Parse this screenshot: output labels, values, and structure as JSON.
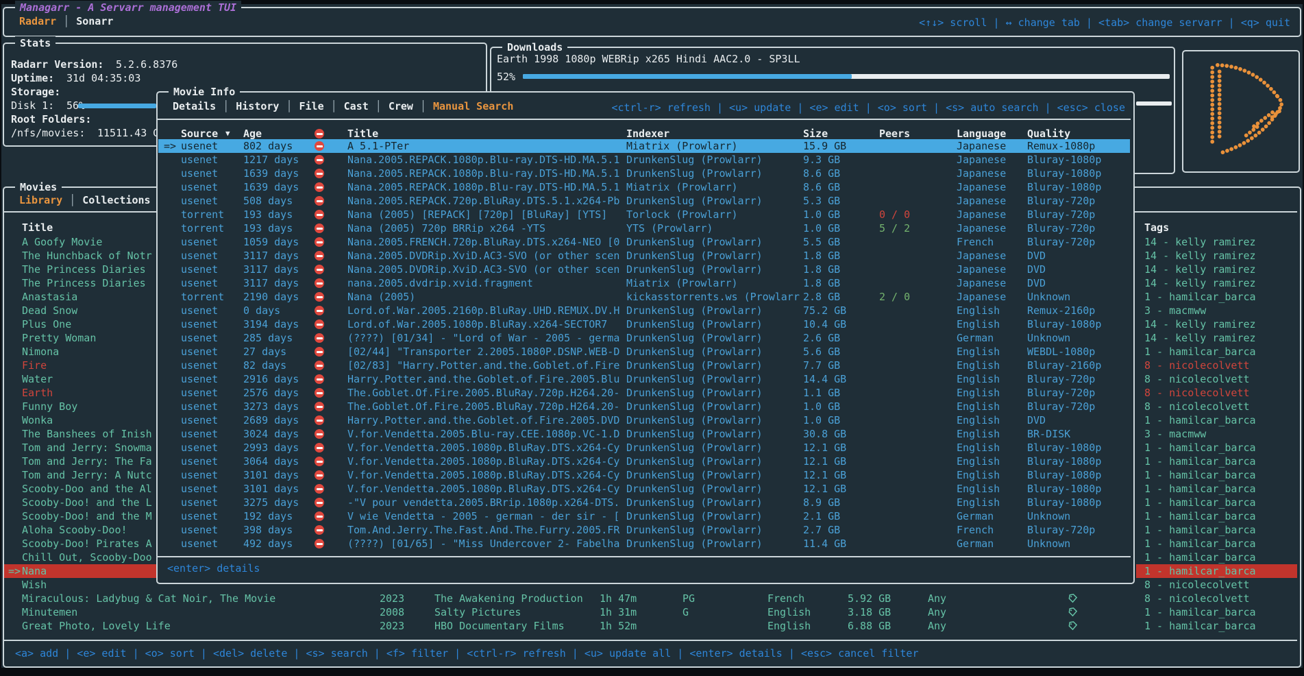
{
  "app": {
    "title": "Managarr - A Servarr management TUI",
    "tabs": [
      {
        "label": "Radarr",
        "active": true
      },
      {
        "label": "Sonarr",
        "active": false
      }
    ],
    "help": "<↑↓> scroll | ↔ change tab | <tab> change servarr | <q> quit"
  },
  "colors": {
    "background": "#1f2e37",
    "border": "#ccd6da",
    "accent_orange": "#e9953f",
    "purple": "#ab6fd6",
    "content_blue": "#4aa0d6",
    "help_blue": "#2e86d9",
    "teal": "#65c2a6",
    "red": "#d0453c",
    "selected_row_bg": "#47a9e2",
    "selected_red_bg": "#c2342c",
    "peers_green": "#74b36e",
    "bar_blue": "#47a9e2"
  },
  "stats": {
    "title": "Stats",
    "lines": [
      {
        "label": "Radarr Version:",
        "value": "5.2.6.8376",
        "bold": true,
        "bar": false
      },
      {
        "label": "Uptime:",
        "value": "31d 04:35:03",
        "bold": true,
        "bar": false
      },
      {
        "label": "Storage:",
        "value": "",
        "bold": true,
        "bar": false
      },
      {
        "label": "Disk 1:",
        "value": "56%",
        "bold": false,
        "bar": true
      },
      {
        "label": "Root Folders:",
        "value": "",
        "bold": true,
        "bar": false
      },
      {
        "label": "/nfs/movies:",
        "value": "11511.43 GB",
        "bold": false,
        "bar": false
      }
    ]
  },
  "downloads": {
    "title": "Downloads",
    "item": "Earth 1998 1080p WEBRip x265 Hindi AAC2.0 - SP3LL",
    "percent": "52%",
    "progress": 0.52
  },
  "movies": {
    "title": "Movies",
    "tabs": [
      {
        "label": "Library",
        "active": true
      },
      {
        "label": "Collections",
        "active": false
      }
    ],
    "columns": {
      "title": "Title",
      "tags": "Tags"
    },
    "footer": "<a> add | <e> edit | <o> sort | <del> delete | <s> search | <f> filter | <ctrl-r> refresh | <u> update all | <enter> details | <esc> cancel filter",
    "rows": [
      {
        "title": "A Goofy Movie",
        "tag": "14 - kelly ramirez"
      },
      {
        "title": "The Hunchback of Notr",
        "tag": "14 - kelly ramirez"
      },
      {
        "title": "The Princess Diaries",
        "tag": "14 - kelly ramirez"
      },
      {
        "title": "The Princess Diaries",
        "tag": "14 - kelly ramirez"
      },
      {
        "title": "Anastasia",
        "tag": "1 - hamilcar_barca"
      },
      {
        "title": "Dead Snow",
        "tag": "3 - macmww"
      },
      {
        "title": "Plus One",
        "tag": "14 - kelly ramirez"
      },
      {
        "title": "Pretty Woman",
        "tag": "14 - kelly ramirez"
      },
      {
        "title": "Nimona",
        "tag": "1 - hamilcar_barca"
      },
      {
        "title": "Fire",
        "red": true,
        "tag": "8 - nicolecolvett",
        "tag_red": true
      },
      {
        "title": "Water",
        "tag": "8 - nicolecolvett"
      },
      {
        "title": "Earth",
        "red": true,
        "tag": "8 - nicolecolvett",
        "tag_red": true
      },
      {
        "title": "Funny Boy",
        "tag": "8 - nicolecolvett"
      },
      {
        "title": "Wonka",
        "tag": "1 - hamilcar_barca"
      },
      {
        "title": "The Banshees of Inish",
        "tag": "3 - macmww"
      },
      {
        "title": "Tom and Jerry: Snowma",
        "tag": "1 - hamilcar_barca"
      },
      {
        "title": "Tom and Jerry: The Fa",
        "tag": "1 - hamilcar_barca"
      },
      {
        "title": "Tom and Jerry: A Nutc",
        "tag": "1 - hamilcar_barca"
      },
      {
        "title": "Scooby-Doo and the Al",
        "tag": "1 - hamilcar_barca"
      },
      {
        "title": "Scooby-Doo! and the L",
        "tag": "1 - hamilcar_barca"
      },
      {
        "title": "Scooby-Doo! and the M",
        "tag": "1 - hamilcar_barca"
      },
      {
        "title": "Aloha Scooby-Doo!",
        "tag": "1 - hamilcar_barca"
      },
      {
        "title": "Scooby-Doo! Pirates A",
        "tag": "1 - hamilcar_barca"
      },
      {
        "title": "Chill Out, Scooby-Doo",
        "tag": "1 - hamilcar_barca"
      },
      {
        "title": "Nana",
        "selected": true,
        "marker": "=>",
        "tag": "1 - hamilcar_barca",
        "tag_selected": true
      },
      {
        "title": "Wish",
        "tag": "8 - nicolecolvett"
      },
      {
        "title": "Miraculous: Ladybug & Cat Noir, The Movie",
        "tag": "8 - nicolecolvett",
        "cells": {
          "year": "2023",
          "studio": "The Awakening Production",
          "runtime": "1h 47m",
          "cert": "PG",
          "language": "French",
          "size": "5.92 GB",
          "availability": "Any"
        }
      },
      {
        "title": "Minutemen",
        "tag": "1 - hamilcar_barca",
        "cells": {
          "year": "2008",
          "studio": "Salty Pictures",
          "runtime": "1h 31m",
          "cert": "G",
          "language": "English",
          "size": "3.18 GB",
          "availability": "Any"
        }
      },
      {
        "title": "Great Photo, Lovely Life",
        "tag": "1 - hamilcar_barca",
        "cells": {
          "year": "2023",
          "studio": "HBO Documentary Films",
          "runtime": "1h 52m",
          "cert": "",
          "language": "English",
          "size": "6.88 GB",
          "availability": "Any"
        }
      }
    ]
  },
  "modal": {
    "title": "Movie Info",
    "tabs": [
      {
        "label": "Details",
        "active": false
      },
      {
        "label": "History",
        "active": false
      },
      {
        "label": "File",
        "active": false
      },
      {
        "label": "Cast",
        "active": false
      },
      {
        "label": "Crew",
        "active": false
      },
      {
        "label": "Manual Search",
        "active": true
      }
    ],
    "help": "<ctrl-r> refresh | <u> update | <e> edit | <o> sort | <s> auto search | <esc> close",
    "footer": "<enter> details",
    "sort_arrow": "▼",
    "columns": {
      "source": "Source",
      "age": "Age",
      "title": "Title",
      "indexer": "Indexer",
      "size": "Size",
      "peers": "Peers",
      "language": "Language",
      "quality": "Quality"
    },
    "rows": [
      {
        "selected": true,
        "marker": "=>",
        "source": "usenet",
        "age": "802 days",
        "title": "A 5.1-PTer",
        "indexer": "Miatrix (Prowlarr)",
        "size": "15.9 GB",
        "peers": "",
        "language": "Japanese",
        "quality": "Remux-1080p"
      },
      {
        "source": "usenet",
        "age": "1217 days",
        "title": "Nana.2005.REPACK.1080p.Blu-ray.DTS-HD.MA.5.1",
        "indexer": "DrunkenSlug (Prowlarr)",
        "size": "9.3 GB",
        "peers": "",
        "language": "Japanese",
        "quality": "Bluray-1080p"
      },
      {
        "source": "usenet",
        "age": "1639 days",
        "title": "Nana.2005.REPACK.1080p.Blu-ray.DTS-HD.MA.5.1",
        "indexer": "DrunkenSlug (Prowlarr)",
        "size": "8.6 GB",
        "peers": "",
        "language": "Japanese",
        "quality": "Bluray-1080p"
      },
      {
        "source": "usenet",
        "age": "1639 days",
        "title": "Nana.2005.REPACK.1080p.Blu-ray.DTS-HD.MA.5.1",
        "indexer": "Miatrix (Prowlarr)",
        "size": "8.6 GB",
        "peers": "",
        "language": "Japanese",
        "quality": "Bluray-1080p"
      },
      {
        "source": "usenet",
        "age": "508 days",
        "title": "Nana.2005.REPACK.720p.BluRay.DTS.5.1.x264-Pb",
        "indexer": "DrunkenSlug (Prowlarr)",
        "size": "5.3 GB",
        "peers": "",
        "language": "Japanese",
        "quality": "Bluray-720p"
      },
      {
        "source": "torrent",
        "age": "193 days",
        "title": "Nana (2005) [REPACK] [720p] [BluRay] [YTS]",
        "indexer": "Torlock (Prowlarr)",
        "size": "1.0 GB",
        "peers": "0 / 0",
        "peers_color": "red",
        "language": "Japanese",
        "quality": "Bluray-720p"
      },
      {
        "source": "torrent",
        "age": "193 days",
        "title": "Nana (2005) 720p BRRip x264 -YTS",
        "indexer": "YTS (Prowlarr)",
        "size": "1.0 GB",
        "peers": "5 / 2",
        "peers_color": "green",
        "language": "Japanese",
        "quality": "Bluray-720p"
      },
      {
        "source": "usenet",
        "age": "1059 days",
        "title": "Nana.2005.FRENCH.720p.BluRay.DTS.x264-NEO [0",
        "indexer": "DrunkenSlug (Prowlarr)",
        "size": "5.5 GB",
        "peers": "",
        "language": "French",
        "quality": "Bluray-720p"
      },
      {
        "source": "usenet",
        "age": "3117 days",
        "title": "Nana.2005.DVDRip.XviD.AC3-SVO (or other scen",
        "indexer": "DrunkenSlug (Prowlarr)",
        "size": "1.8 GB",
        "peers": "",
        "language": "Japanese",
        "quality": "DVD"
      },
      {
        "source": "usenet",
        "age": "3117 days",
        "title": "Nana.2005.DVDRip.XviD.AC3-SVO (or other scen",
        "indexer": "DrunkenSlug (Prowlarr)",
        "size": "1.8 GB",
        "peers": "",
        "language": "Japanese",
        "quality": "DVD"
      },
      {
        "source": "usenet",
        "age": "3117 days",
        "title": "nana.2005.dvdrip.xvid.fragment",
        "indexer": "Miatrix (Prowlarr)",
        "size": "1.8 GB",
        "peers": "",
        "language": "Japanese",
        "quality": "DVD"
      },
      {
        "source": "torrent",
        "age": "2190 days",
        "title": "Nana (2005)",
        "indexer": "kickasstorrents.ws (Prowlarr",
        "size": "2.8 GB",
        "peers": "2 / 0",
        "peers_color": "green",
        "language": "Japanese",
        "quality": "Unknown"
      },
      {
        "source": "usenet",
        "age": "0 days",
        "title": "Lord.of.War.2005.2160p.BluRay.UHD.REMUX.DV.H",
        "indexer": "DrunkenSlug (Prowlarr)",
        "size": "75.2 GB",
        "peers": "",
        "language": "English",
        "quality": "Remux-2160p"
      },
      {
        "source": "usenet",
        "age": "3194 days",
        "title": "Lord.of.War.2005.1080p.BluRay.x264-SECTOR7",
        "indexer": "DrunkenSlug (Prowlarr)",
        "size": "10.4 GB",
        "peers": "",
        "language": "English",
        "quality": "Bluray-1080p"
      },
      {
        "source": "usenet",
        "age": "285 days",
        "title": "(????) [01/34] - \"Lord of War - 2005 - germa",
        "indexer": "DrunkenSlug (Prowlarr)",
        "size": "2.6 GB",
        "peers": "",
        "language": "German",
        "quality": "Unknown"
      },
      {
        "source": "usenet",
        "age": "27 days",
        "title": "[02/44] \"Transporter 2.2005.1080P.DSNP.WEB-D",
        "indexer": "DrunkenSlug (Prowlarr)",
        "size": "5.6 GB",
        "peers": "",
        "language": "English",
        "quality": "WEBDL-1080p"
      },
      {
        "source": "usenet",
        "age": "82 days",
        "title": "[02/83] \"Harry.Potter.and.the.Goblet.of.Fire",
        "indexer": "DrunkenSlug (Prowlarr)",
        "size": "7.7 GB",
        "peers": "",
        "language": "English",
        "quality": "Bluray-2160p"
      },
      {
        "source": "usenet",
        "age": "2916 days",
        "title": "Harry.Potter.and.the.Goblet.of.Fire.2005.Blu",
        "indexer": "DrunkenSlug (Prowlarr)",
        "size": "14.4 GB",
        "peers": "",
        "language": "English",
        "quality": "Bluray-720p"
      },
      {
        "source": "usenet",
        "age": "2576 days",
        "title": "The.Goblet.Of.Fire.2005.BluRay.720p.H264.20-",
        "indexer": "DrunkenSlug (Prowlarr)",
        "size": "1.1 GB",
        "peers": "",
        "language": "English",
        "quality": "Bluray-720p"
      },
      {
        "source": "usenet",
        "age": "3273 days",
        "title": "The.Goblet.Of.Fire.2005.BluRay.720p.H264.20-",
        "indexer": "DrunkenSlug (Prowlarr)",
        "size": "1.0 GB",
        "peers": "",
        "language": "English",
        "quality": "Bluray-720p"
      },
      {
        "source": "usenet",
        "age": "2689 days",
        "title": "Harry.Potter.and.the.Goblet.of.Fire.2005.DVD",
        "indexer": "DrunkenSlug (Prowlarr)",
        "size": "1.0 GB",
        "peers": "",
        "language": "English",
        "quality": "DVD"
      },
      {
        "source": "usenet",
        "age": "3024 days",
        "title": "V.for.Vendetta.2005.Blu-ray.CEE.1080p.VC-1.D",
        "indexer": "DrunkenSlug (Prowlarr)",
        "size": "30.8 GB",
        "peers": "",
        "language": "English",
        "quality": "BR-DISK"
      },
      {
        "source": "usenet",
        "age": "2993 days",
        "title": "V.for.Vendetta.2005.1080p.BluRay.DTS.x264-Cy",
        "indexer": "DrunkenSlug (Prowlarr)",
        "size": "12.1 GB",
        "peers": "",
        "language": "English",
        "quality": "Bluray-1080p"
      },
      {
        "source": "usenet",
        "age": "3064 days",
        "title": "V.for.Vendetta.2005.1080p.BluRay.DTS.x264-Cy",
        "indexer": "DrunkenSlug (Prowlarr)",
        "size": "12.1 GB",
        "peers": "",
        "language": "English",
        "quality": "Bluray-1080p"
      },
      {
        "source": "usenet",
        "age": "3101 days",
        "title": "V.for.Vendetta.2005.1080p.BluRay.DTS.x264-Cy",
        "indexer": "DrunkenSlug (Prowlarr)",
        "size": "12.1 GB",
        "peers": "",
        "language": "English",
        "quality": "Bluray-1080p"
      },
      {
        "source": "usenet",
        "age": "3101 days",
        "title": "V.for.Vendetta.2005.1080p.BluRay.DTS.x264-Cy",
        "indexer": "DrunkenSlug (Prowlarr)",
        "size": "12.1 GB",
        "peers": "",
        "language": "English",
        "quality": "Bluray-1080p"
      },
      {
        "source": "usenet",
        "age": "3275 days",
        "title": "-\"V pour vendetta.2005.BRrip.1080p.x264-DTS.",
        "indexer": "DrunkenSlug (Prowlarr)",
        "size": "8.9 GB",
        "peers": "",
        "language": "English",
        "quality": "Bluray-1080p"
      },
      {
        "source": "usenet",
        "age": "192 days",
        "title": "V wie Vendetta - 2005 - german - der sir - [",
        "indexer": "DrunkenSlug (Prowlarr)",
        "size": "2.1 GB",
        "peers": "",
        "language": "German",
        "quality": "Unknown"
      },
      {
        "source": "usenet",
        "age": "398 days",
        "title": "Tom.And.Jerry.The.Fast.And.The.Furry.2005.FR",
        "indexer": "DrunkenSlug (Prowlarr)",
        "size": "2.7 GB",
        "peers": "",
        "language": "French",
        "quality": "Bluray-720p"
      },
      {
        "source": "usenet",
        "age": "492 days",
        "title": "(????) [01/65] - \"Miss Undercover 2- Fabelha",
        "indexer": "DrunkenSlug (Prowlarr)",
        "size": "11.4 GB",
        "peers": "",
        "language": "German",
        "quality": "Unknown"
      }
    ]
  }
}
